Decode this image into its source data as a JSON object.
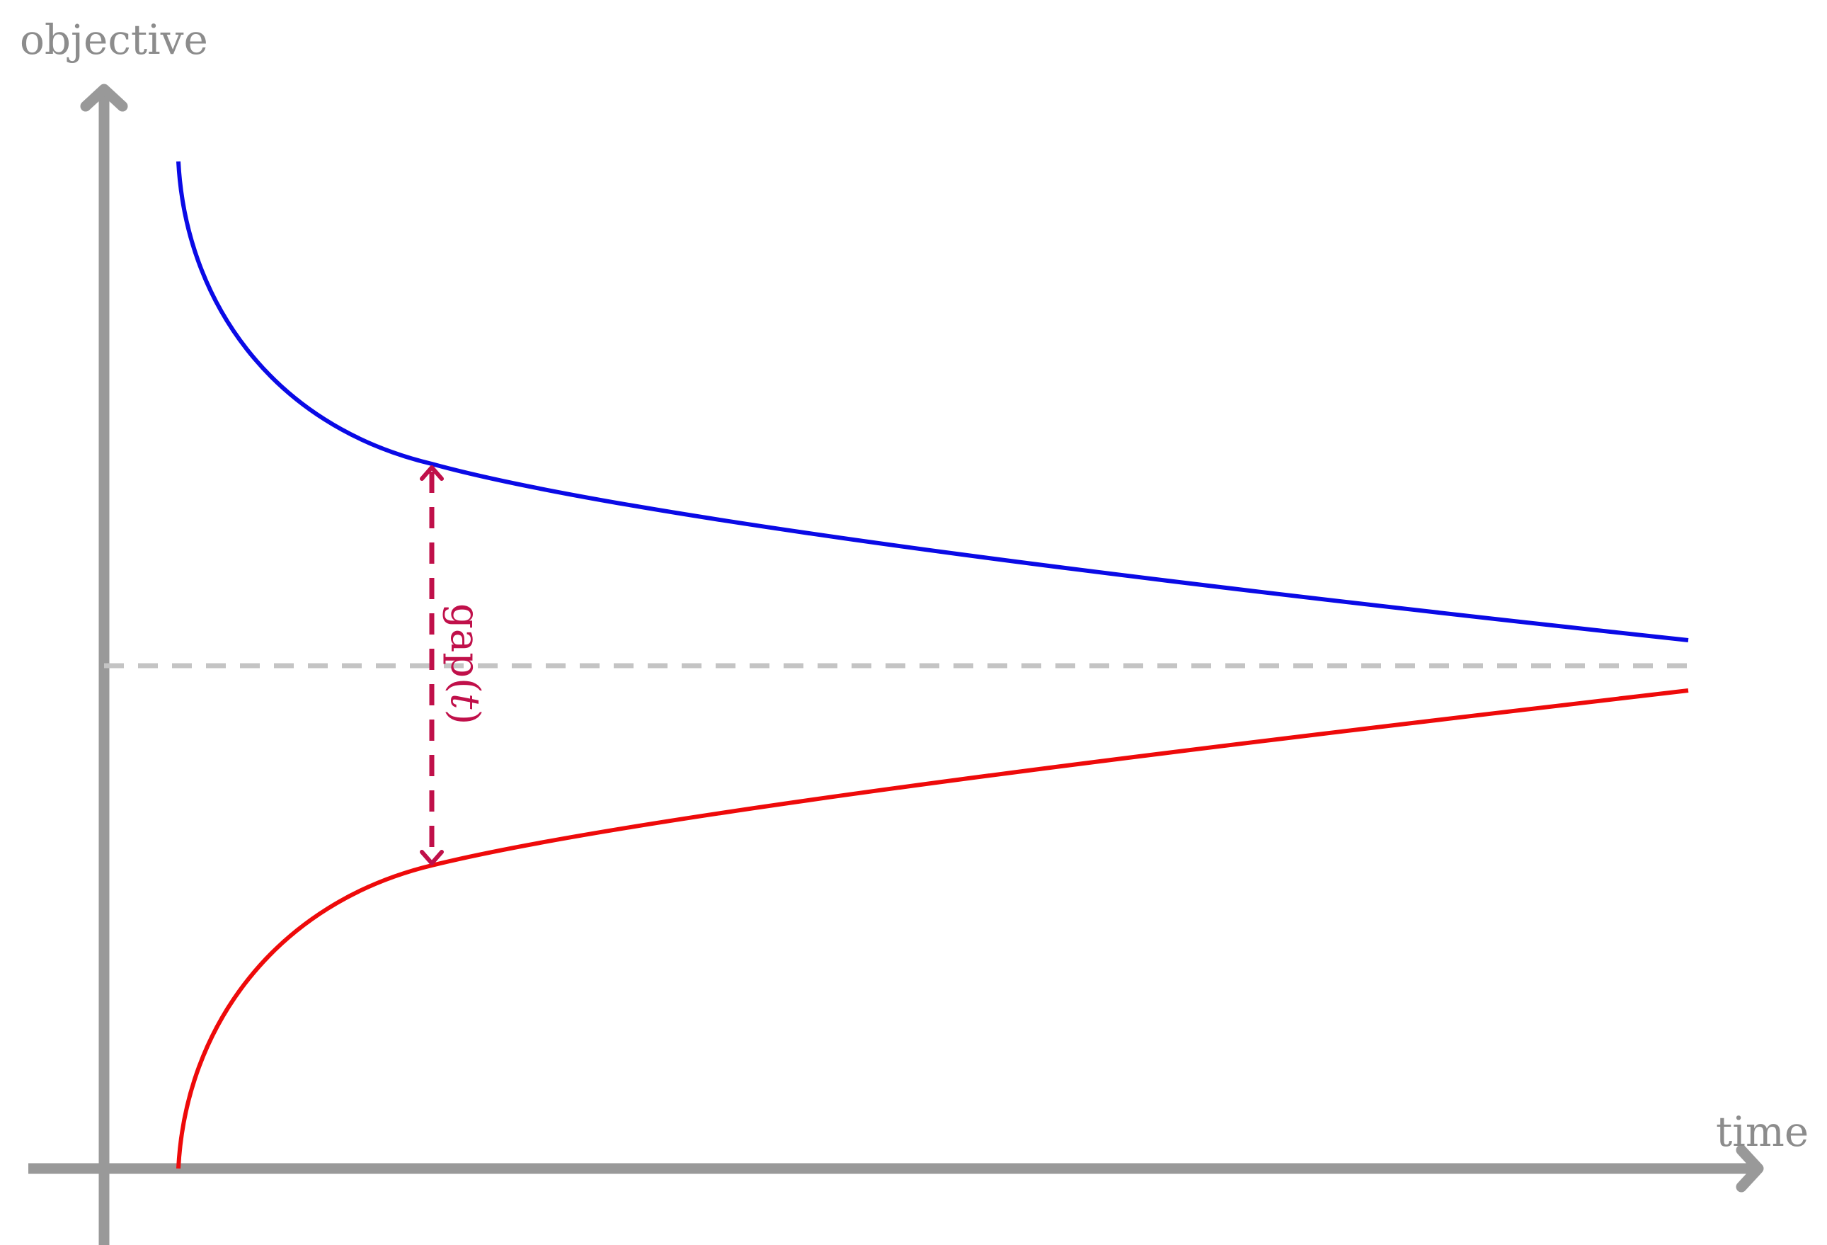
{
  "diagram": {
    "y_axis": {
      "label": "objective"
    },
    "x_axis": {
      "label": "time"
    },
    "upper_curve": {
      "color": "#0a0ae6"
    },
    "lower_curve": {
      "color": "#ee0a0a"
    },
    "optimum_line": {
      "color": "#c4c4c4"
    },
    "gap_annotation": {
      "text_prefix": "gap(",
      "variable": "t",
      "text_suffix": ")",
      "color": "#c0104a"
    },
    "axis_color": "#999999"
  }
}
